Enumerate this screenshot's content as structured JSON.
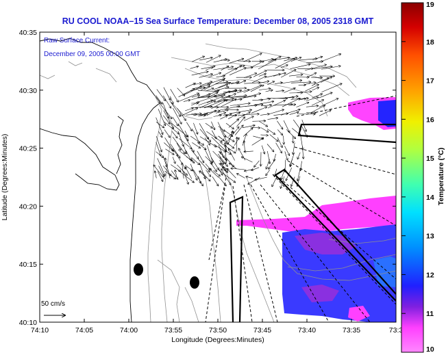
{
  "title": "RU COOL  NOAA–15  Sea Surface Temperature:  December 08, 2005 2318 GMT",
  "overlay": {
    "line1": "Raw Surface Current:",
    "line2": "December 09, 2005 00:00 GMT"
  },
  "x_axis": {
    "label": "Longitude (Degrees:Minutes)",
    "ticks": [
      "74:10",
      "74:05",
      "74:00",
      "73:55",
      "73:50",
      "73:45",
      "73:40",
      "73:35",
      "73:3"
    ]
  },
  "y_axis": {
    "label": "Latitude (Degrees:Minutes)",
    "ticks": [
      "40:35",
      "40:30",
      "40:25",
      "40:20",
      "40:15",
      "40:10"
    ]
  },
  "scale_vector": {
    "label": "50 cm/s"
  },
  "colorbar": {
    "label": "Temperature (°C)",
    "ticks": [
      "19",
      "18",
      "17",
      "16",
      "15",
      "14",
      "13",
      "12",
      "11",
      "10"
    ],
    "colors": [
      "#8b0000",
      "#d40000",
      "#ff5000",
      "#ffa000",
      "#f0f000",
      "#b0ff40",
      "#40ffb0",
      "#00e0ff",
      "#0090ff",
      "#2020ff",
      "#8020e0",
      "#ff40ff",
      "#ff88ff"
    ]
  },
  "sst_color_scale": {
    "min": 10,
    "max": 19
  },
  "sst_patches": [
    {
      "name": "sst-patch-northeast",
      "temperature": 11.0
    },
    {
      "name": "sst-patch-southeast",
      "temperature": 11.2
    },
    {
      "name": "sst-patch-magenta-band",
      "temperature": 10.4
    }
  ]
}
